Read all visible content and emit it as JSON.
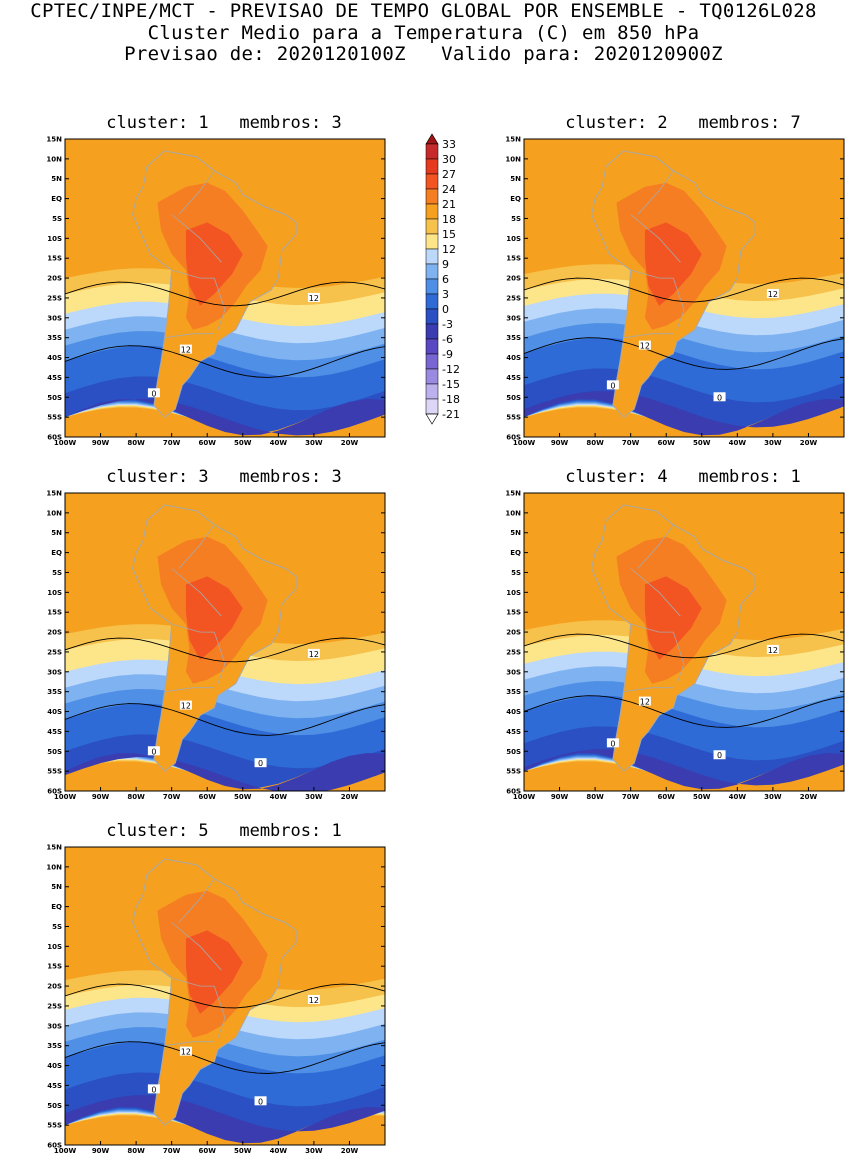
{
  "header": {
    "line1": "CPTEC/INPE/MCT - PREVISAO DE TEMPO GLOBAL POR ENSEMBLE - TQ0126L028",
    "line2": "Cluster Medio para a Temperatura (C) em 850 hPa",
    "line3": "Previsao de: 2020120100Z   Valido para: 2020120900Z"
  },
  "colors": {
    "levels": [
      {
        "label": "33",
        "color": "#a01414"
      },
      {
        "label": "30",
        "color": "#c62a2a"
      },
      {
        "label": "27",
        "color": "#e63a1f"
      },
      {
        "label": "24",
        "color": "#f25522"
      },
      {
        "label": "21",
        "color": "#f67e22"
      },
      {
        "label": "18",
        "color": "#f5a11f"
      },
      {
        "label": "15",
        "color": "#f7c24c"
      },
      {
        "label": "12",
        "color": "#fde68a"
      },
      {
        "label": "9",
        "color": "#bcd8fa"
      },
      {
        "label": "6",
        "color": "#7fb2f0"
      },
      {
        "label": "3",
        "color": "#4f8fe5"
      },
      {
        "label": "0",
        "color": "#2f6bd6"
      },
      {
        "label": "-3",
        "color": "#2a50c4"
      },
      {
        "label": "-6",
        "color": "#3a3cb0"
      },
      {
        "label": "-9",
        "color": "#5a48c2"
      },
      {
        "label": "-12",
        "color": "#7a66d2"
      },
      {
        "label": "-15",
        "color": "#9b8ae0"
      },
      {
        "label": "-18",
        "color": "#bdb0ec"
      },
      {
        "label": "-21",
        "color": "#ddd6f6"
      }
    ],
    "ocean": "#f5a11f",
    "border_line": "#a8a8a8"
  },
  "axes": {
    "lat_labels": [
      "15N",
      "10N",
      "5N",
      "EQ",
      "5S",
      "10S",
      "15S",
      "20S",
      "25S",
      "30S",
      "35S",
      "40S",
      "45S",
      "50S",
      "55S",
      "60S"
    ],
    "lon_labels": [
      "100W",
      "90W",
      "80W",
      "70W",
      "60W",
      "50W",
      "40W",
      "30W",
      "20W"
    ]
  },
  "panels": [
    {
      "title": "cluster: 1   membros: 3",
      "contour_labels": [
        "12",
        "12",
        "0"
      ]
    },
    {
      "title": "cluster: 2   membros: 7",
      "contour_labels": [
        "12",
        "12",
        "0",
        "0"
      ]
    },
    {
      "title": "cluster: 3   membros: 3",
      "contour_labels": [
        "12",
        "12",
        "0",
        "0"
      ]
    },
    {
      "title": "cluster: 4   membros: 1",
      "contour_labels": [
        "12",
        "12",
        "0",
        "0"
      ]
    },
    {
      "title": "cluster: 5   membros: 1",
      "contour_labels": [
        "12",
        "12",
        "0",
        "0"
      ]
    }
  ]
}
